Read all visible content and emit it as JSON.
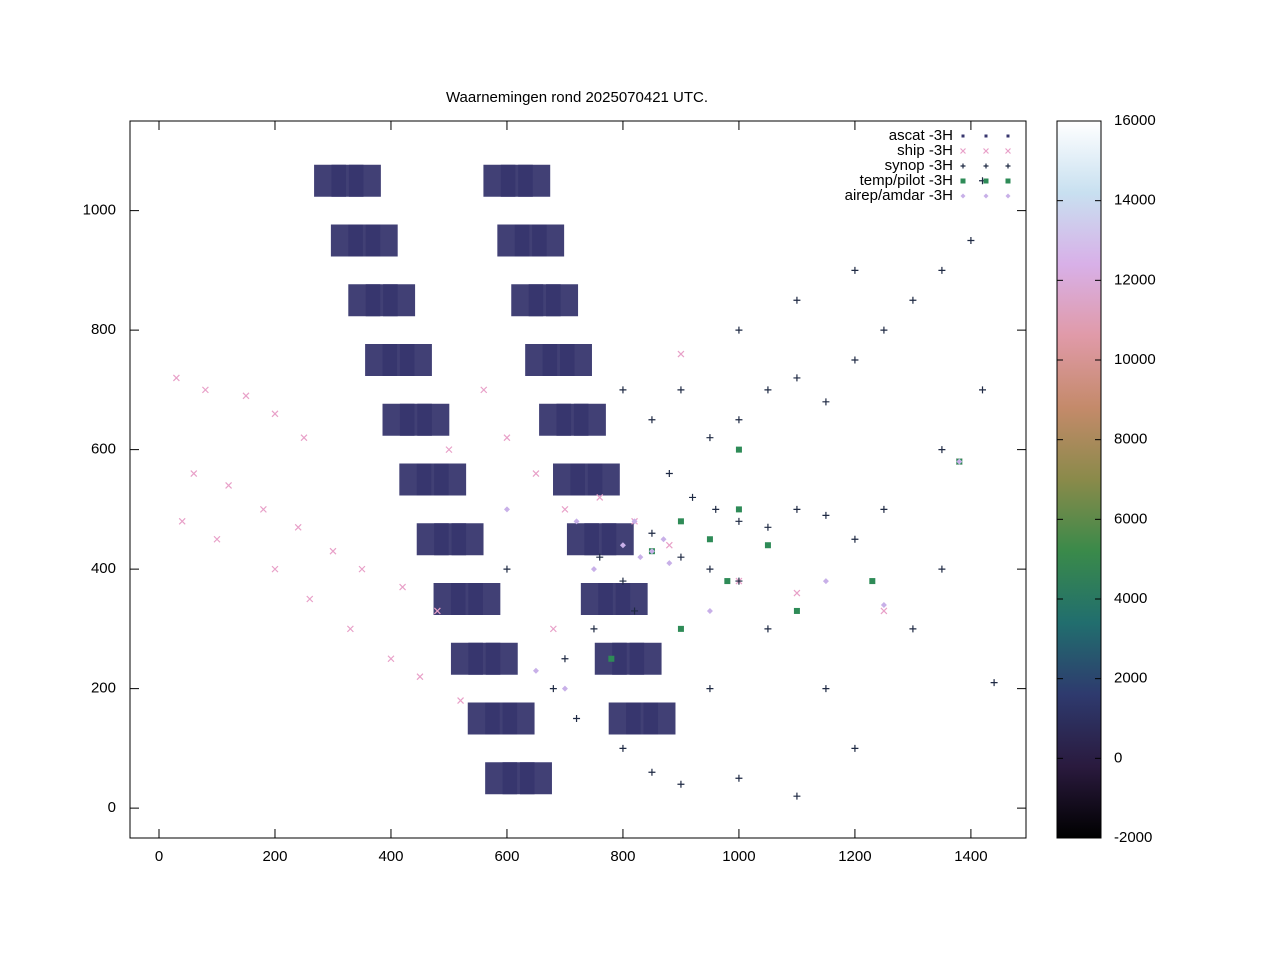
{
  "chart_data": {
    "type": "scatter",
    "title": "Waarnemingen rond 2025070421 UTC.",
    "xlim": [
      -50,
      1495
    ],
    "ylim": [
      -50,
      1150
    ],
    "xticks": [
      0,
      200,
      400,
      600,
      800,
      1000,
      1200,
      1400
    ],
    "yticks": [
      0,
      200,
      400,
      600,
      800,
      1000
    ],
    "legend": "top right",
    "colorbar": {
      "range": [
        -2000,
        16000
      ],
      "ticks": [
        -2000,
        0,
        2000,
        4000,
        6000,
        8000,
        10000,
        12000,
        14000,
        16000
      ],
      "palette": [
        "#000000",
        "#2a1a3e",
        "#2e3a6e",
        "#216e6e",
        "#3a8a4a",
        "#8a8a4a",
        "#c48a6a",
        "#e09aa8",
        "#d8b0e8",
        "#c8e0f0",
        "#ffffff"
      ]
    },
    "series": [
      {
        "name": "ascat -3H",
        "color": "#37366e",
        "marker": "square",
        "x": [
          295,
          325,
          355,
          324,
          354,
          384,
          354,
          384,
          414,
          383,
          413,
          443,
          413,
          443,
          473,
          442,
          472,
          502,
          472,
          502,
          532,
          501,
          531,
          561,
          531,
          561,
          591,
          560,
          590,
          620,
          590,
          620,
          650,
          587,
          617,
          647,
          611,
          641,
          671,
          635,
          665,
          695,
          659,
          689,
          719,
          683,
          713,
          743,
          707,
          737,
          767,
          731,
          761,
          791,
          755,
          785,
          815,
          779,
          809,
          839,
          803,
          833,
          863
        ],
        "y": [
          1050,
          1050,
          1050,
          950,
          950,
          950,
          850,
          850,
          850,
          750,
          750,
          750,
          650,
          650,
          650,
          550,
          550,
          550,
          450,
          450,
          450,
          350,
          350,
          350,
          250,
          250,
          250,
          150,
          150,
          150,
          50,
          50,
          50,
          1050,
          1050,
          1050,
          950,
          950,
          950,
          850,
          850,
          850,
          750,
          750,
          750,
          650,
          650,
          650,
          550,
          550,
          550,
          450,
          450,
          450,
          350,
          350,
          350,
          250,
          250,
          250,
          150,
          150,
          150
        ]
      },
      {
        "name": "ship -3H",
        "color": "#e8a0c8",
        "marker": "x",
        "x": [
          30,
          80,
          150,
          200,
          250,
          60,
          120,
          180,
          240,
          300,
          350,
          420,
          480,
          200,
          260,
          330,
          400,
          450,
          520,
          100,
          40,
          600,
          650,
          700,
          760,
          820,
          880,
          1000,
          1100,
          1250,
          1380,
          900,
          680,
          560,
          500
        ],
        "y": [
          720,
          700,
          690,
          660,
          620,
          560,
          540,
          500,
          470,
          430,
          400,
          370,
          330,
          400,
          350,
          300,
          250,
          220,
          180,
          450,
          480,
          620,
          560,
          500,
          520,
          480,
          440,
          380,
          360,
          330,
          580,
          760,
          300,
          700,
          600
        ]
      },
      {
        "name": "synop -3H",
        "color": "#1f2a44",
        "marker": "plus",
        "x": [
          800,
          850,
          900,
          950,
          1000,
          1050,
          1100,
          1150,
          1200,
          1250,
          1300,
          1350,
          1400,
          1420,
          1000,
          1100,
          1200,
          880,
          920,
          960,
          1000,
          1050,
          1100,
          1150,
          1200,
          850,
          900,
          950,
          1000,
          800,
          750,
          700,
          720,
          800,
          850,
          900,
          1000,
          1100,
          1300,
          1440,
          1350,
          1250,
          1350,
          1420,
          680,
          600,
          760,
          820,
          1050,
          950,
          1150,
          1200
        ],
        "y": [
          700,
          650,
          700,
          620,
          650,
          700,
          720,
          680,
          750,
          800,
          850,
          900,
          950,
          1050,
          800,
          850,
          900,
          560,
          520,
          500,
          480,
          470,
          500,
          490,
          450,
          460,
          420,
          400,
          380,
          380,
          300,
          250,
          150,
          100,
          60,
          40,
          50,
          20,
          300,
          210,
          400,
          500,
          600,
          700,
          200,
          400,
          420,
          330,
          300,
          200,
          200,
          100
        ]
      },
      {
        "name": "temp/pilot -3H",
        "color": "#2e8b57",
        "marker": "filled-square",
        "x": [
          950,
          1000,
          900,
          1050,
          850,
          980,
          1380,
          900,
          1100,
          780,
          1230,
          1000
        ],
        "y": [
          450,
          500,
          480,
          440,
          430,
          380,
          580,
          300,
          330,
          250,
          380,
          600
        ]
      },
      {
        "name": "airep/amdar -3H",
        "color": "#c8b0e8",
        "marker": "diamond",
        "x": [
          850,
          870,
          830,
          750,
          720,
          950,
          1150,
          1250,
          700,
          1380,
          650,
          600,
          820,
          880,
          800
        ],
        "y": [
          430,
          450,
          420,
          400,
          480,
          330,
          380,
          340,
          200,
          580,
          230,
          500,
          480,
          410,
          440
        ]
      }
    ]
  }
}
